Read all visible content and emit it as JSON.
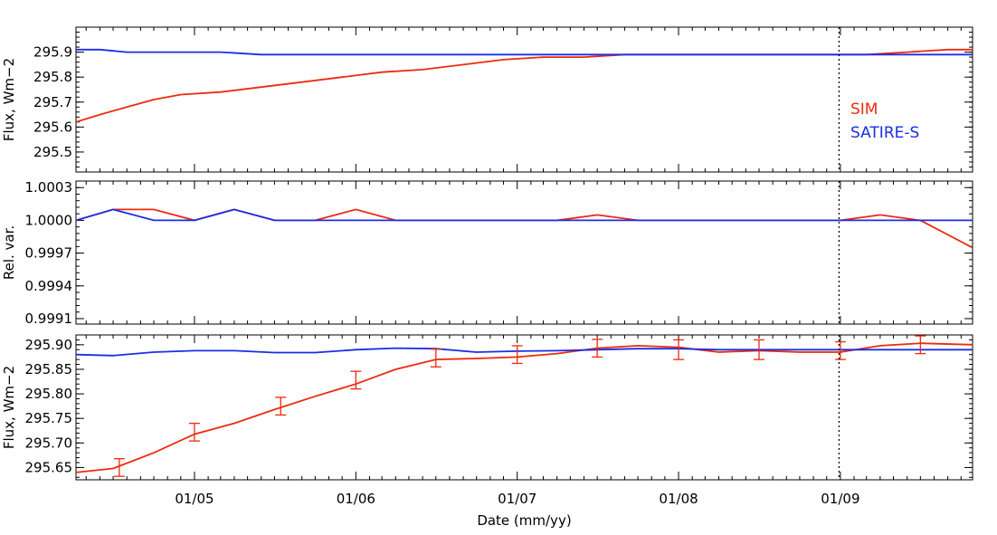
{
  "colors": {
    "SIM": "#ee2a0e",
    "SATIRE-S": "#1a2ee6",
    "axis": "#000000"
  },
  "chart_data": [
    {
      "type": "line",
      "ylabel": "Flux, Wm−2",
      "ylim": [
        295.42,
        296.0
      ],
      "yticks": [
        295.5,
        295.6,
        295.7,
        295.8,
        295.9
      ],
      "yticklabels": [
        "295.5",
        "295.6",
        "295.7",
        "295.8",
        "295.9"
      ],
      "xlim": [
        "2004-04-08",
        "2009-10-27"
      ],
      "grid": false,
      "legend": {
        "placement": "right",
        "entries": [
          "SIM",
          "SATIRE-S"
        ]
      },
      "vline_dotted": "2008-12-29",
      "series": [
        {
          "name": "SIM",
          "x": [
            "2004-04-08",
            "2004-06-01",
            "2004-08-01",
            "2004-10-01",
            "2004-12-01",
            "2005-03-01",
            "2005-06-01",
            "2005-09-01",
            "2005-12-01",
            "2006-03-01",
            "2006-06-01",
            "2006-09-01",
            "2006-12-01",
            "2007-03-01",
            "2007-06-01",
            "2007-09-01",
            "2007-12-01",
            "2008-03-01",
            "2008-06-01",
            "2008-09-01",
            "2008-12-01",
            "2009-03-01",
            "2009-06-01",
            "2009-09-01",
            "2009-10-27"
          ],
          "values": [
            295.62,
            295.65,
            295.68,
            295.71,
            295.73,
            295.74,
            295.76,
            295.78,
            295.8,
            295.82,
            295.83,
            295.85,
            295.87,
            295.88,
            295.88,
            295.89,
            295.89,
            295.89,
            295.89,
            295.89,
            295.89,
            295.89,
            295.9,
            295.91,
            295.91
          ]
        },
        {
          "name": "SATIRE-S",
          "x": [
            "2004-04-08",
            "2004-06-01",
            "2004-08-01",
            "2004-10-01",
            "2004-12-01",
            "2005-03-01",
            "2005-06-01",
            "2005-09-01",
            "2005-12-01",
            "2006-03-01",
            "2006-06-01",
            "2006-09-01",
            "2006-12-01",
            "2007-03-01",
            "2007-06-01",
            "2007-09-01",
            "2007-12-01",
            "2008-03-01",
            "2008-06-01",
            "2008-09-01",
            "2008-12-01",
            "2009-03-01",
            "2009-06-01",
            "2009-09-01",
            "2009-10-27"
          ],
          "values": [
            295.91,
            295.91,
            295.9,
            295.9,
            295.9,
            295.9,
            295.89,
            295.89,
            295.89,
            295.89,
            295.89,
            295.89,
            295.89,
            295.89,
            295.89,
            295.89,
            295.89,
            295.89,
            295.89,
            295.89,
            295.89,
            295.89,
            295.89,
            295.89,
            295.89
          ]
        }
      ]
    },
    {
      "type": "line",
      "ylabel": "Rel. var.",
      "ylim": [
        0.99905,
        1.00036
      ],
      "yticks": [
        0.9991,
        0.9994,
        0.9997,
        1.0,
        1.0003
      ],
      "yticklabels": [
        "0.9991",
        "0.9994",
        "0.9997",
        "1.0000",
        "1.0003"
      ],
      "xlim": [
        "2004-04-08",
        "2009-10-27"
      ],
      "grid": false,
      "vline_dotted": "2008-12-29",
      "series": [
        {
          "name": "SIM",
          "x": [
            "2004-04-08",
            "2004-07-01",
            "2004-10-01",
            "2005-01-01",
            "2005-04-01",
            "2005-07-01",
            "2005-10-01",
            "2006-01-01",
            "2006-04-01",
            "2006-07-01",
            "2006-10-01",
            "2007-01-01",
            "2007-04-01",
            "2007-07-01",
            "2007-10-01",
            "2008-01-01",
            "2008-04-01",
            "2008-07-01",
            "2008-10-01",
            "2009-01-01",
            "2009-04-01",
            "2009-07-01",
            "2009-10-27"
          ],
          "values": [
            1.0,
            1.0001,
            1.0001,
            1.0,
            1.0001,
            1.0,
            1.0,
            1.0001,
            1.0,
            1.0,
            1.0,
            1.0,
            1.0,
            1.00005,
            1.0,
            1.0,
            1.0,
            1.0,
            1.0,
            1.0,
            1.00005,
            1.0,
            0.99975
          ]
        },
        {
          "name": "SATIRE-S",
          "x": [
            "2004-04-08",
            "2004-07-01",
            "2004-10-01",
            "2005-01-01",
            "2005-04-01",
            "2005-07-01",
            "2005-10-01",
            "2006-01-01",
            "2006-04-01",
            "2006-07-01",
            "2006-10-01",
            "2007-01-01",
            "2007-04-01",
            "2007-07-01",
            "2007-10-01",
            "2008-01-01",
            "2008-04-01",
            "2008-07-01",
            "2008-10-01",
            "2009-01-01",
            "2009-04-01",
            "2009-07-01",
            "2009-10-27"
          ],
          "values": [
            1.0,
            1.0001,
            1.0,
            1.0,
            1.0001,
            1.0,
            1.0,
            1.0,
            1.0,
            1.0,
            1.0,
            1.0,
            1.0,
            1.0,
            1.0,
            1.0,
            1.0,
            1.0,
            1.0,
            1.0,
            1.0,
            1.0,
            1.0
          ]
        }
      ]
    },
    {
      "type": "line",
      "ylabel": "Flux, Wm−2",
      "ylim": [
        295.625,
        295.92
      ],
      "yticks": [
        295.65,
        295.7,
        295.75,
        295.8,
        295.85,
        295.9
      ],
      "yticklabels": [
        "295.65",
        "295.70",
        "295.75",
        "295.80",
        "295.85",
        "295.90"
      ],
      "xlim": [
        "2004-04-08",
        "2009-10-27"
      ],
      "xticks": [
        "2005-01-01",
        "2006-01-01",
        "2007-01-01",
        "2008-01-01",
        "2009-01-01"
      ],
      "xticklabels": [
        "01/05",
        "01/06",
        "01/07",
        "01/08",
        "01/09"
      ],
      "xlabel": "Date (mm/yy)",
      "grid": false,
      "vline_dotted": "2008-12-29",
      "series": [
        {
          "name": "SIM",
          "x": [
            "2004-04-08",
            "2004-07-01",
            "2004-10-01",
            "2005-01-01",
            "2005-04-01",
            "2005-07-01",
            "2005-10-01",
            "2006-01-01",
            "2006-04-01",
            "2006-07-01",
            "2006-10-01",
            "2007-01-01",
            "2007-04-01",
            "2007-07-01",
            "2007-10-01",
            "2008-01-01",
            "2008-04-01",
            "2008-07-01",
            "2008-10-01",
            "2009-01-01",
            "2009-04-01",
            "2009-07-01",
            "2009-10-27"
          ],
          "values": [
            295.64,
            295.648,
            295.68,
            295.718,
            295.74,
            295.768,
            295.795,
            295.82,
            295.85,
            295.87,
            295.872,
            295.875,
            295.882,
            295.893,
            295.898,
            295.895,
            295.885,
            295.888,
            295.885,
            295.885,
            295.898,
            295.903,
            295.9
          ]
        },
        {
          "name": "SATIRE-S",
          "x": [
            "2004-04-08",
            "2004-07-01",
            "2004-10-01",
            "2005-01-01",
            "2005-04-01",
            "2005-07-01",
            "2005-10-01",
            "2006-01-01",
            "2006-04-01",
            "2006-07-01",
            "2006-10-01",
            "2007-01-01",
            "2007-04-01",
            "2007-07-01",
            "2007-10-01",
            "2008-01-01",
            "2008-04-01",
            "2008-07-01",
            "2008-10-01",
            "2009-01-01",
            "2009-04-01",
            "2009-07-01",
            "2009-10-27"
          ],
          "values": [
            295.88,
            295.878,
            295.885,
            295.888,
            295.888,
            295.884,
            295.884,
            295.89,
            295.893,
            295.892,
            295.885,
            295.887,
            295.888,
            295.89,
            295.892,
            295.892,
            295.89,
            295.89,
            295.89,
            295.89,
            295.89,
            295.89,
            295.89
          ]
        }
      ],
      "errorbars": {
        "series": "SIM",
        "x": [
          "2004-07-15",
          "2005-01-01",
          "2005-07-15",
          "2006-01-01",
          "2006-07-01",
          "2007-01-01",
          "2007-07-01",
          "2008-01-01",
          "2008-07-01",
          "2009-01-01",
          "2009-07-01"
        ],
        "values": [
          295.65,
          295.722,
          295.775,
          295.828,
          295.873,
          295.88,
          295.893,
          295.89,
          295.89,
          295.888,
          295.9
        ],
        "err": [
          0.018,
          0.018,
          0.018,
          0.018,
          0.018,
          0.018,
          0.018,
          0.02,
          0.02,
          0.018,
          0.018
        ]
      }
    }
  ]
}
